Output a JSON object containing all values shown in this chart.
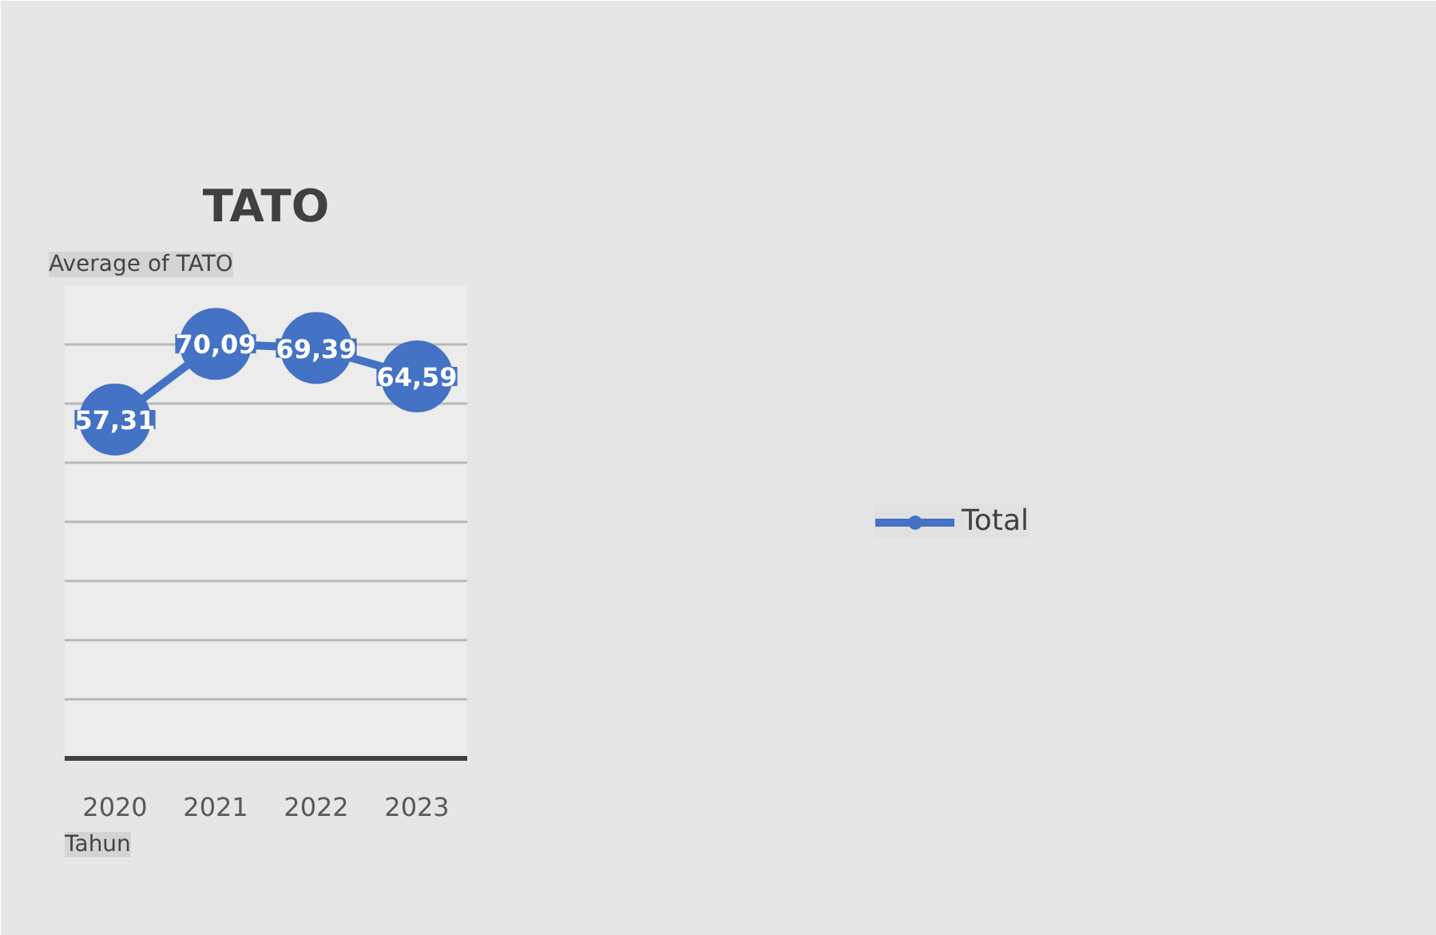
{
  "chart_data": {
    "type": "line",
    "title": "TATO",
    "categories": [
      "2020",
      "2021",
      "2022",
      "2023"
    ],
    "series": [
      {
        "name": "Total",
        "color": "#4472c4",
        "values": [
          57.31,
          70.09,
          69.39,
          64.59
        ],
        "value_labels": [
          "57,31",
          "70,09",
          "69,39",
          "64,59"
        ]
      }
    ],
    "ylim": [
      0,
      80
    ],
    "yticks": [
      0,
      10,
      20,
      30,
      40,
      50,
      60,
      70,
      80
    ],
    "tick_labels": "x",
    "grid": "y",
    "legend": "right",
    "marker": "circle",
    "line_style": "solid",
    "annotations": [
      "Average of TATO",
      "Tahun"
    ]
  }
}
